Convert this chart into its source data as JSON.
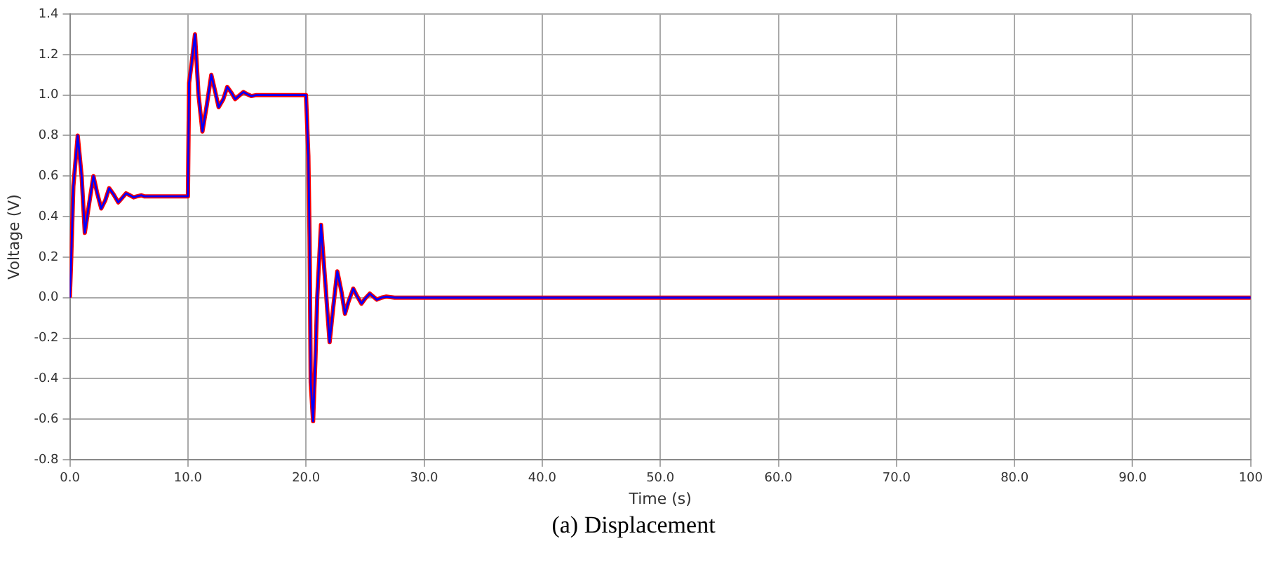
{
  "chart_data": {
    "type": "line",
    "xlabel": "Time (s)",
    "ylabel": "Voltage (V)",
    "annotations": [
      "(a) Displacement"
    ],
    "xlim": [
      0,
      100
    ],
    "ylim": [
      -0.8,
      1.4
    ],
    "xticks": [
      {
        "value": 0,
        "label": "0.0"
      },
      {
        "value": 10,
        "label": "10.0"
      },
      {
        "value": 20,
        "label": "20.0"
      },
      {
        "value": 30,
        "label": "30.0"
      },
      {
        "value": 40,
        "label": "40.0"
      },
      {
        "value": 50,
        "label": "50.0"
      },
      {
        "value": 60,
        "label": "60.0"
      },
      {
        "value": 70,
        "label": "70.0"
      },
      {
        "value": 80,
        "label": "80.0"
      },
      {
        "value": 90,
        "label": "90.0"
      },
      {
        "value": 100,
        "label": "100"
      }
    ],
    "yticks": [
      {
        "value": -0.8,
        "label": "-0.8"
      },
      {
        "value": -0.6,
        "label": "-0.6"
      },
      {
        "value": -0.4,
        "label": "-0.4"
      },
      {
        "value": -0.2,
        "label": "-0.2"
      },
      {
        "value": 0,
        "label": "0.0"
      },
      {
        "value": 0.2,
        "label": "0.2"
      },
      {
        "value": 0.4,
        "label": "0.4"
      },
      {
        "value": 0.6,
        "label": "0.6"
      },
      {
        "value": 0.8,
        "label": "0.8"
      },
      {
        "value": 1,
        "label": "1.0"
      },
      {
        "value": 1.2,
        "label": "1.2"
      },
      {
        "value": 1.4,
        "label": "1.4"
      }
    ],
    "grid": true,
    "marker": "none",
    "line_style": "solid",
    "series": [
      {
        "color": "#ff0000",
        "x": [
          0,
          0.1,
          0.3,
          0.67,
          1.0,
          1.27,
          1.6,
          2.0,
          2.3,
          2.66,
          3.0,
          3.33,
          3.7,
          4.1,
          4.4,
          4.76,
          5.1,
          5.4,
          5.7,
          6.07,
          6.3,
          10,
          10.1,
          10.3,
          10.6,
          10.9,
          11.23,
          11.6,
          11.98,
          12.3,
          12.6,
          13.0,
          13.33,
          13.7,
          14.0,
          14.4,
          14.7,
          15.0,
          15.36,
          15.8,
          20,
          20.2,
          20.3,
          20.4,
          20.6,
          20.8,
          20.95,
          21.27,
          21.6,
          22.0,
          22.3,
          22.65,
          23.0,
          23.3,
          23.6,
          24.0,
          24.3,
          24.7,
          25.0,
          25.4,
          25.7,
          26.0,
          26.4,
          26.8,
          27.5,
          28.5,
          100
        ],
        "values": [
          0,
          0.16,
          0.55,
          0.8,
          0.6,
          0.32,
          0.45,
          0.6,
          0.52,
          0.44,
          0.48,
          0.54,
          0.51,
          0.47,
          0.49,
          0.515,
          0.505,
          0.495,
          0.5,
          0.505,
          0.5,
          0.5,
          1.06,
          1.15,
          1.3,
          1.0,
          0.82,
          0.95,
          1.1,
          1.02,
          0.94,
          0.98,
          1.04,
          1.01,
          0.98,
          1.0,
          1.015,
          1.005,
          0.995,
          1.0,
          1.0,
          0.7,
          0.3,
          -0.42,
          -0.61,
          -0.3,
          0,
          0.36,
          0.1,
          -0.22,
          -0.05,
          0.13,
          0.03,
          -0.08,
          -0.02,
          0.045,
          0.01,
          -0.03,
          -0.005,
          0.02,
          0.005,
          -0.01,
          0,
          0.005,
          0,
          0,
          0
        ]
      },
      {
        "color": "#0000ff",
        "x": [
          0,
          0.1,
          0.3,
          0.67,
          1.0,
          1.27,
          1.6,
          2.0,
          2.3,
          2.66,
          3.0,
          3.33,
          3.7,
          4.1,
          4.4,
          4.76,
          5.1,
          5.4,
          5.7,
          6.07,
          6.3,
          10,
          10.1,
          10.3,
          10.6,
          10.9,
          11.23,
          11.6,
          11.98,
          12.3,
          12.6,
          13.0,
          13.33,
          13.7,
          14.0,
          14.4,
          14.7,
          15.0,
          15.36,
          15.8,
          20,
          20.2,
          20.3,
          20.4,
          20.6,
          20.8,
          20.95,
          21.27,
          21.6,
          22.0,
          22.3,
          22.65,
          23.0,
          23.3,
          23.6,
          24.0,
          24.3,
          24.7,
          25.0,
          25.4,
          25.7,
          26.0,
          26.4,
          26.8,
          27.5,
          28.5,
          100
        ],
        "values": [
          0,
          0.16,
          0.55,
          0.8,
          0.6,
          0.32,
          0.45,
          0.6,
          0.52,
          0.44,
          0.48,
          0.54,
          0.51,
          0.47,
          0.49,
          0.515,
          0.505,
          0.495,
          0.5,
          0.505,
          0.5,
          0.5,
          1.06,
          1.15,
          1.3,
          1.0,
          0.82,
          0.95,
          1.1,
          1.02,
          0.94,
          0.98,
          1.04,
          1.01,
          0.98,
          1.0,
          1.015,
          1.005,
          0.995,
          1.0,
          1.0,
          0.7,
          0.3,
          -0.42,
          -0.61,
          -0.3,
          0,
          0.36,
          0.1,
          -0.22,
          -0.05,
          0.13,
          0.03,
          -0.08,
          -0.02,
          0.045,
          0.01,
          -0.03,
          -0.005,
          0.02,
          0.005,
          -0.01,
          0,
          0.005,
          0,
          0,
          0
        ]
      }
    ]
  }
}
